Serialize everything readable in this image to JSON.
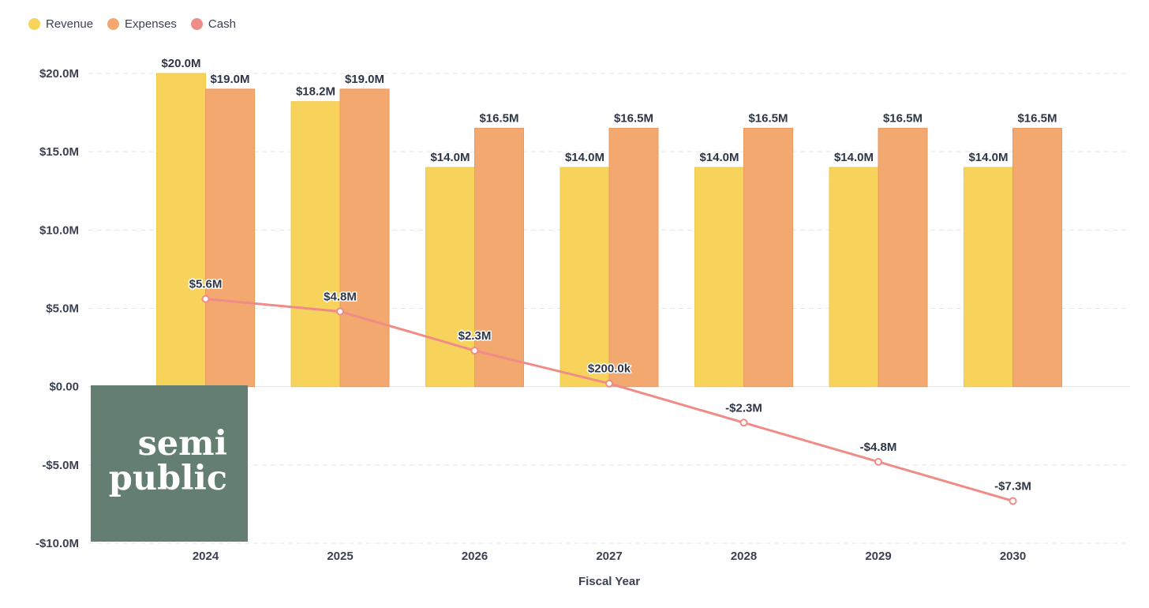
{
  "chart_data": {
    "type": "bar+line",
    "categories": [
      "2024",
      "2025",
      "2026",
      "2027",
      "2028",
      "2029",
      "2030"
    ],
    "series": [
      {
        "name": "Revenue",
        "kind": "bar",
        "color": "#f7d35c",
        "values": [
          20.0,
          18.2,
          14.0,
          14.0,
          14.0,
          14.0,
          14.0
        ],
        "labels": [
          "$20.0M",
          "$18.2M",
          "$14.0M",
          "$14.0M",
          "$14.0M",
          "$14.0M",
          "$14.0M"
        ]
      },
      {
        "name": "Expenses",
        "kind": "bar",
        "color": "#f2a86f",
        "values": [
          19.0,
          19.0,
          16.5,
          16.5,
          16.5,
          16.5,
          16.5
        ],
        "labels": [
          "$19.0M",
          "$19.0M",
          "$16.5M",
          "$16.5M",
          "$16.5M",
          "$16.5M",
          "$16.5M"
        ]
      },
      {
        "name": "Cash",
        "kind": "line",
        "color": "#f08c88",
        "values": [
          5.6,
          4.8,
          2.3,
          0.2,
          -2.3,
          -4.8,
          -7.3
        ],
        "labels": [
          "$5.6M",
          "$4.8M",
          "$2.3M",
          "$200.0k",
          "-$2.3M",
          "-$4.8M",
          "-$7.3M"
        ]
      }
    ],
    "xlabel": "Fiscal Year",
    "ylabel": "",
    "ylim": [
      -10,
      20
    ],
    "yticks": [
      20,
      15,
      10,
      5,
      0,
      -5,
      -10
    ],
    "ytick_labels": [
      "$20.0M",
      "$15.0M",
      "$10.0M",
      "$5.0M",
      "$0.00",
      "-$5.0M",
      "-$10.0M"
    ],
    "grid": true,
    "legend_position": "top-left"
  },
  "watermark": {
    "line1": "semi",
    "line2": "public"
  }
}
